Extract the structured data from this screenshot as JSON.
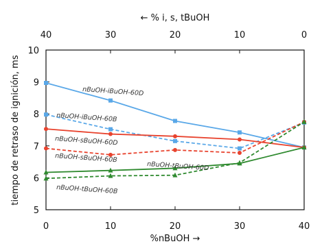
{
  "chart_data": {
    "type": "line",
    "x": [
      0,
      10,
      20,
      30,
      40
    ],
    "xlabel": "%nBuOH →",
    "x_ticks": [
      "0",
      "10",
      "20",
      "30",
      "40"
    ],
    "top_xlabel": "← % i, s, tBuOH",
    "top_x_ticks": [
      "40",
      "30",
      "20",
      "10",
      "0"
    ],
    "ylabel": "tiempo de retraso de ignición, ms",
    "y_ticks": [
      "5",
      "6",
      "7",
      "8",
      "9",
      "10"
    ],
    "xlim": [
      0,
      40
    ],
    "ylim": [
      5,
      10
    ],
    "grid": false,
    "series": [
      {
        "name": "nBuOH-iBuOH-60D",
        "values": [
          8.97,
          8.42,
          7.78,
          7.42,
          6.95
        ],
        "color": "#5aa8e8",
        "dash": "solid",
        "marker": "square"
      },
      {
        "name": "nBuOH-iBuOH-60B",
        "values": [
          7.98,
          7.52,
          7.15,
          6.92,
          7.73
        ],
        "color": "#5aa8e8",
        "dash": "dashed",
        "marker": "square"
      },
      {
        "name": "nBuOH-sBuOH-60D",
        "values": [
          7.53,
          7.37,
          7.3,
          7.2,
          6.95
        ],
        "color": "#e8432e",
        "dash": "solid",
        "marker": "circle"
      },
      {
        "name": "nBuOH-sBuOH-60B",
        "values": [
          6.92,
          6.72,
          6.87,
          6.78,
          7.75
        ],
        "color": "#e8432e",
        "dash": "dashed",
        "marker": "circle"
      },
      {
        "name": "nBuOH-tBuOH-60D",
        "values": [
          6.17,
          6.23,
          6.3,
          6.45,
          6.95
        ],
        "color": "#2f8a2f",
        "dash": "solid",
        "marker": "triangle"
      },
      {
        "name": "nBuOH-tBuOH-60B",
        "values": [
          5.98,
          6.06,
          6.08,
          6.47,
          7.75
        ],
        "color": "#2f8a2f",
        "dash": "dashed",
        "marker": "triangle"
      }
    ]
  }
}
